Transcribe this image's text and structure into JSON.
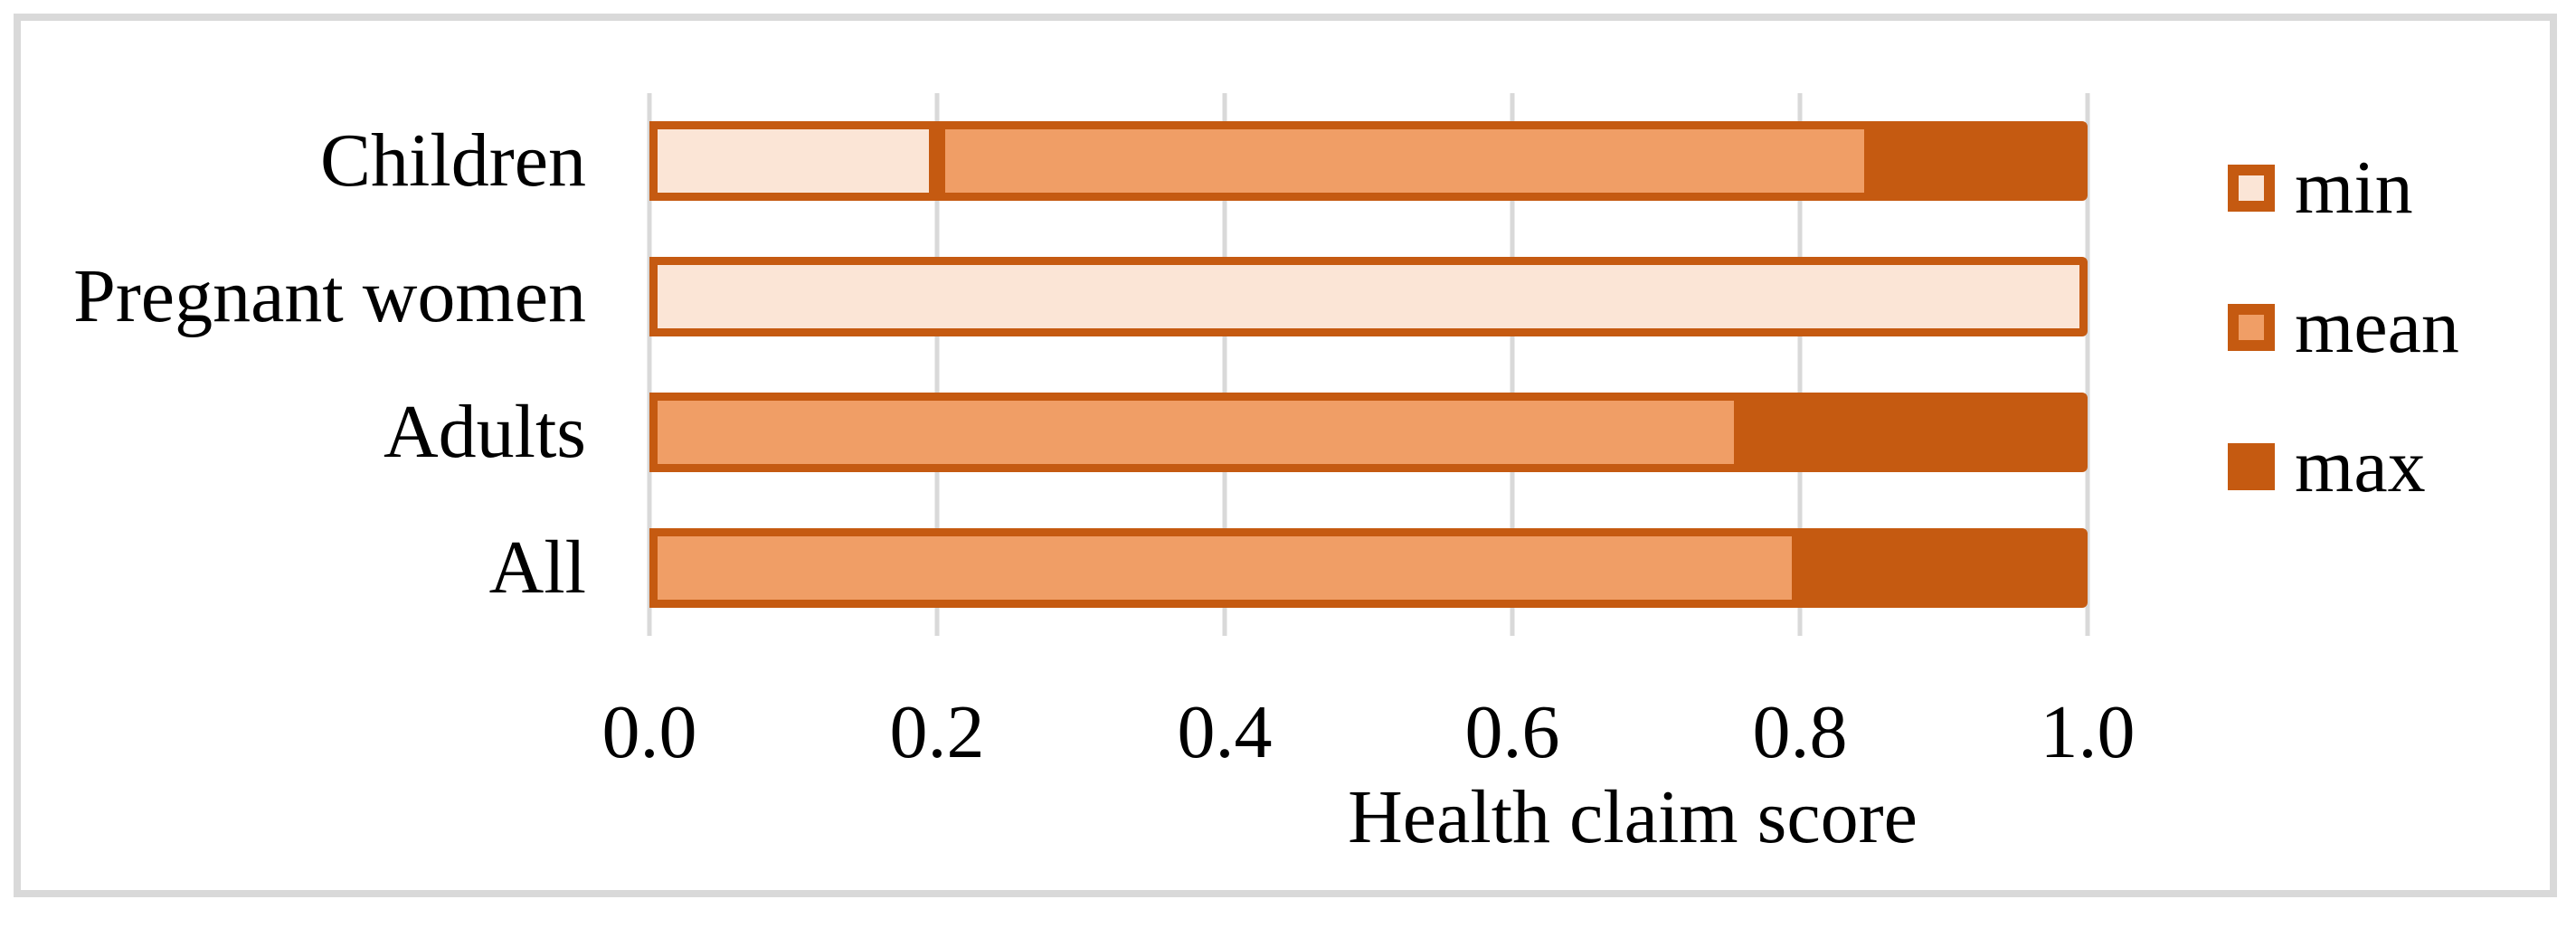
{
  "figure": {
    "background": "#FFFFFF",
    "frame_color": "#D9D9D9"
  },
  "chart_data": {
    "type": "bar",
    "orientation": "horizontal",
    "stacked": true,
    "title": "",
    "xlabel": "Health claim score",
    "ylabel": "",
    "categories": [
      "Children",
      "Pregnant women",
      "Adults",
      "All"
    ],
    "value_encoding": "cumulative (each series value is the running total reached on the 0-1 axis)",
    "series": [
      {
        "name": "min",
        "values": [
          0.2,
          1.0,
          0.0,
          0.0
        ],
        "fill": "#FBE5D6",
        "border": "#C55A11"
      },
      {
        "name": "mean",
        "values": [
          0.85,
          1.0,
          0.76,
          0.8
        ],
        "fill": "#F09E66",
        "border": "#C55A11"
      },
      {
        "name": "max",
        "values": [
          1.0,
          1.0,
          1.0,
          1.0
        ],
        "fill": "#C55A11",
        "border": "#C55A11"
      }
    ],
    "xlim": [
      0.0,
      1.0
    ],
    "x_ticks": [
      "0.0",
      "0.2",
      "0.4",
      "0.6",
      "0.8",
      "1.0"
    ],
    "x_tick_values": [
      0.0,
      0.2,
      0.4,
      0.6,
      0.8,
      1.0
    ],
    "grid": true,
    "gridline_color": "#D9D9D9",
    "legend_position": "right",
    "legend": [
      "min",
      "mean",
      "max"
    ]
  }
}
